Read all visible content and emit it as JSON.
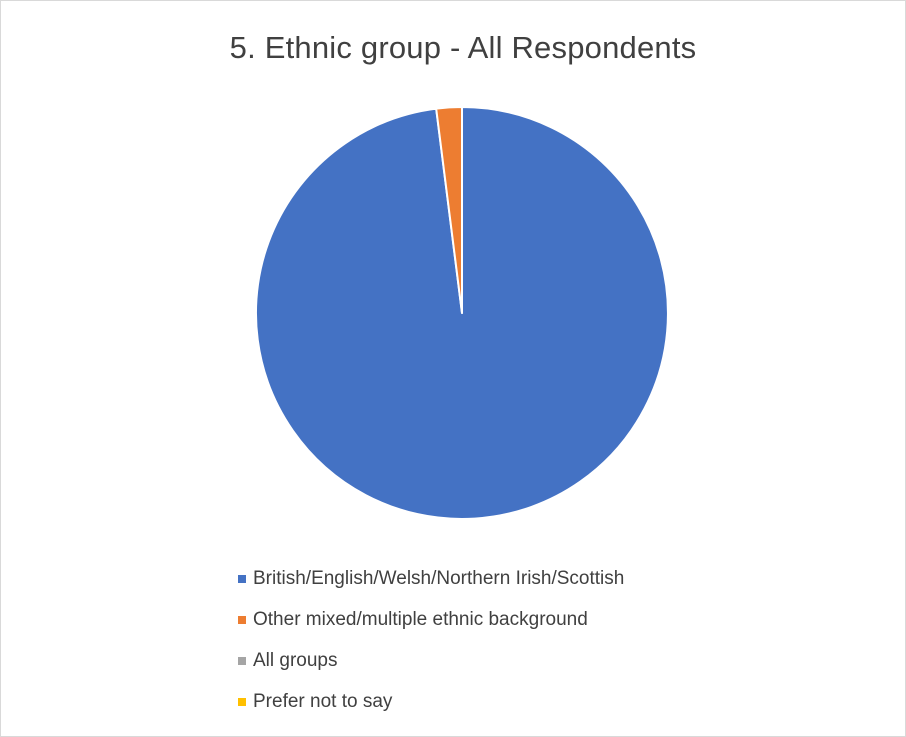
{
  "chart_data": {
    "type": "pie",
    "title": "5. Ethnic group - All Respondents",
    "categories": [
      "British/English/Welsh/Northern Irish/Scottish",
      "Other mixed/multiple ethnic background",
      "All groups",
      "Prefer not to say"
    ],
    "values": [
      98,
      2,
      0,
      0
    ],
    "colors": [
      "#4472C4",
      "#ED7D31",
      "#A5A5A5",
      "#FFC000"
    ],
    "legend_position": "bottom",
    "start_angle": "top, clockwise"
  }
}
